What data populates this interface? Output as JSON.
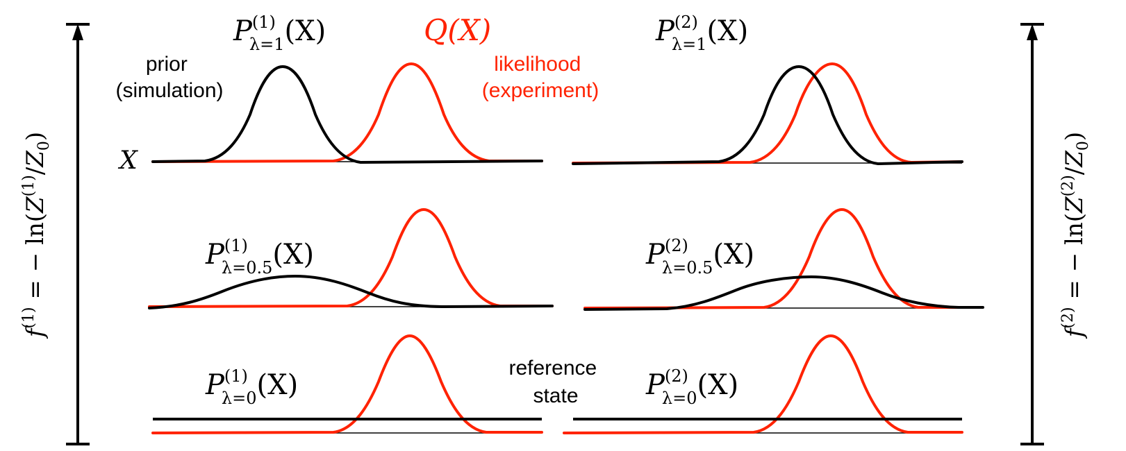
{
  "labels": {
    "prior_line1": "prior",
    "prior_line2": "(simulation)",
    "likelihood_line1": "likelihood",
    "likelihood_line2": "(experiment)",
    "reference_line1": "reference",
    "reference_line2": "state",
    "x_axis": "X",
    "Q": "Q(X)"
  },
  "formulas": {
    "p_sym": "P",
    "x_arg": "(X)",
    "sup_1": "(1)",
    "sup_2": "(2)",
    "sub_1": "λ=1",
    "sub_05": "λ=0.5",
    "sub_0": "λ=0"
  },
  "axes": {
    "left": {
      "f": "f",
      "sup": "(1)",
      "mid": " = − ln(",
      "Z": "Z",
      "Zsup": "(1)",
      "slash": "/",
      "Z0": "Z",
      "Z0sub": "0",
      "close": ")"
    },
    "right": {
      "f": "f",
      "sup": "(2)",
      "mid": " = − ln(",
      "Z": "Z",
      "Zsup": "(2)",
      "slash": "/",
      "Z0": "Z",
      "Z0sub": "0",
      "close": ")"
    }
  },
  "colors": {
    "prior": "#000000",
    "likelihood": "#ff2200",
    "text_red": "#ff2200"
  }
}
